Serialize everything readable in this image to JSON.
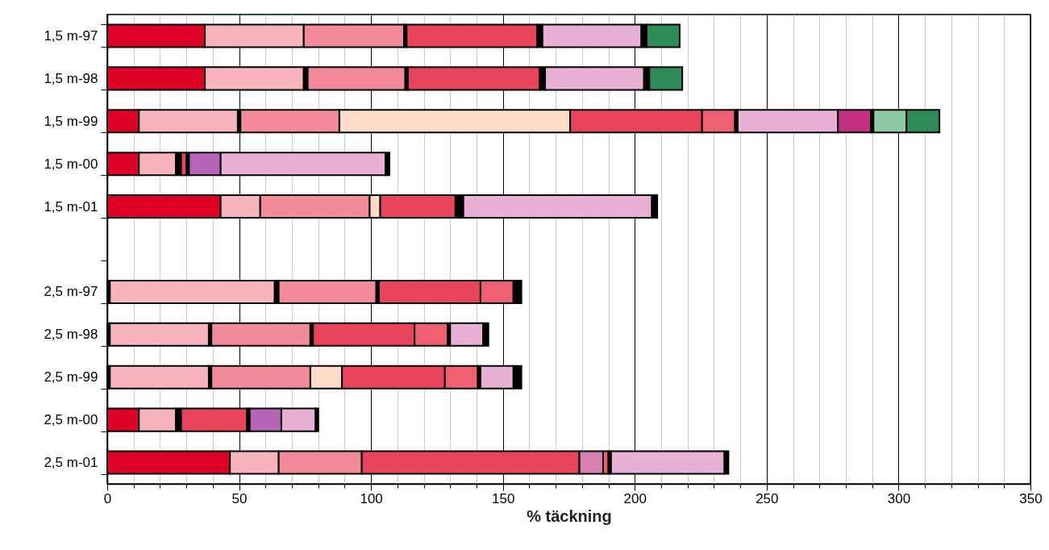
{
  "chart_data": {
    "type": "bar",
    "orientation": "horizontal",
    "stacked": true,
    "xlabel": "% täckning",
    "categories": [
      "1,5 m-97",
      "1,5 m-98",
      "1,5 m-99",
      "1,5 m-00",
      "1,5 m-01",
      null,
      "2,5 m-97",
      "2,5 m-98",
      "2,5 m-99",
      "2,5 m-00",
      "2,5 m-01"
    ],
    "xlim": [
      0,
      350
    ],
    "xticks": [
      0,
      {
        "value": 10,
        "label": null
      },
      {
        "value": 20,
        "label": null
      },
      {
        "value": 30,
        "label": null
      },
      {
        "value": 40,
        "label": null
      },
      50,
      {
        "value": 60,
        "label": null
      },
      {
        "value": 70,
        "label": null
      },
      {
        "value": 80,
        "label": null
      },
      {
        "value": 90,
        "label": null
      },
      100,
      {
        "value": 110,
        "label": null
      },
      {
        "value": 120,
        "label": null
      },
      {
        "value": 130,
        "label": null
      },
      {
        "value": 140,
        "label": null
      },
      150,
      {
        "value": 160,
        "label": null
      },
      {
        "value": 170,
        "label": null
      },
      {
        "value": 180,
        "label": null
      },
      {
        "value": 190,
        "label": null
      },
      200,
      {
        "value": 210,
        "label": null
      },
      {
        "value": 220,
        "label": null
      },
      {
        "value": 230,
        "label": null
      },
      {
        "value": 240,
        "label": null
      },
      250,
      {
        "value": 260,
        "label": null
      },
      {
        "value": 270,
        "label": null
      },
      {
        "value": 280,
        "label": null
      },
      {
        "value": 290,
        "label": null
      },
      300,
      {
        "value": 310,
        "label": null
      },
      {
        "value": 320,
        "label": null
      },
      {
        "value": 330,
        "label": null
      },
      {
        "value": 340,
        "label": null
      },
      350
    ],
    "grid": "x",
    "series": [
      {
        "color": "#000000",
        "values": [
          null,
          null,
          null,
          null,
          null,
          null,
          1,
          1,
          1,
          null,
          null
        ]
      },
      {
        "color": "#dc0024",
        "values": [
          37,
          37,
          12,
          12,
          43,
          null,
          null,
          null,
          null,
          12,
          46.5
        ]
      },
      {
        "color": "#f7b4bc",
        "values": [
          37.5,
          37.5,
          37.5,
          14,
          15,
          null,
          62.5,
          37.5,
          37.5,
          14,
          18.5
        ]
      },
      {
        "color": "#000000",
        "values": [
          null,
          1.5,
          1,
          2,
          null,
          null,
          1.5,
          1,
          1,
          2,
          null
        ]
      },
      {
        "color": "#f28a9a",
        "values": [
          38,
          37,
          37.5,
          null,
          41.5,
          null,
          37,
          37.5,
          37.5,
          null,
          31.5
        ]
      },
      {
        "color": "#fcdcc8",
        "values": [
          null,
          null,
          87.5,
          null,
          4,
          null,
          null,
          null,
          12,
          null,
          null
        ]
      },
      {
        "color": "#000000",
        "values": [
          1,
          1,
          null,
          null,
          null,
          null,
          1,
          1,
          null,
          null,
          null
        ]
      },
      {
        "color": "#e8455c",
        "values": [
          49.5,
          50,
          50,
          2,
          28.5,
          null,
          38.5,
          38.5,
          39,
          25,
          82.5
        ]
      },
      {
        "color": "#000000",
        "values": [
          2,
          2,
          null,
          1,
          3,
          null,
          null,
          null,
          null,
          1,
          null
        ]
      },
      {
        "color": "#d67fb0",
        "values": [
          null,
          null,
          null,
          null,
          null,
          null,
          null,
          null,
          null,
          null,
          9
        ]
      },
      {
        "color": "#ef5f72",
        "values": [
          null,
          null,
          12.5,
          null,
          null,
          null,
          12.5,
          12.5,
          12.5,
          null,
          2
        ]
      },
      {
        "color": "#000000",
        "values": [
          null,
          null,
          1,
          null,
          null,
          null,
          1.5,
          1,
          1,
          null,
          1
        ]
      },
      {
        "color": "#b565b5",
        "values": [
          null,
          null,
          null,
          12,
          null,
          null,
          null,
          null,
          null,
          12,
          null
        ]
      },
      {
        "color": "#e8b0d4",
        "values": [
          37.5,
          37.5,
          38,
          62.5,
          71.5,
          null,
          null,
          12.5,
          12.5,
          13,
          43
        ]
      },
      {
        "color": "#c2307f",
        "values": [
          null,
          null,
          12.5,
          null,
          null,
          null,
          null,
          null,
          null,
          null,
          null
        ]
      },
      {
        "color": "#000000",
        "values": [
          2,
          2,
          1,
          null,
          null,
          null,
          null,
          null,
          null,
          null,
          null
        ]
      },
      {
        "color": "#8fcaa8",
        "values": [
          null,
          null,
          12.5,
          null,
          null,
          null,
          null,
          null,
          null,
          null,
          null
        ]
      },
      {
        "color": "#2e8b57",
        "values": [
          12.5,
          12.5,
          12.5,
          null,
          null,
          null,
          null,
          null,
          null,
          null,
          null
        ]
      },
      {
        "color": "#000000",
        "values": [
          null,
          null,
          null,
          1.5,
          2,
          null,
          1.5,
          2,
          3,
          1,
          1.5
        ]
      }
    ]
  }
}
